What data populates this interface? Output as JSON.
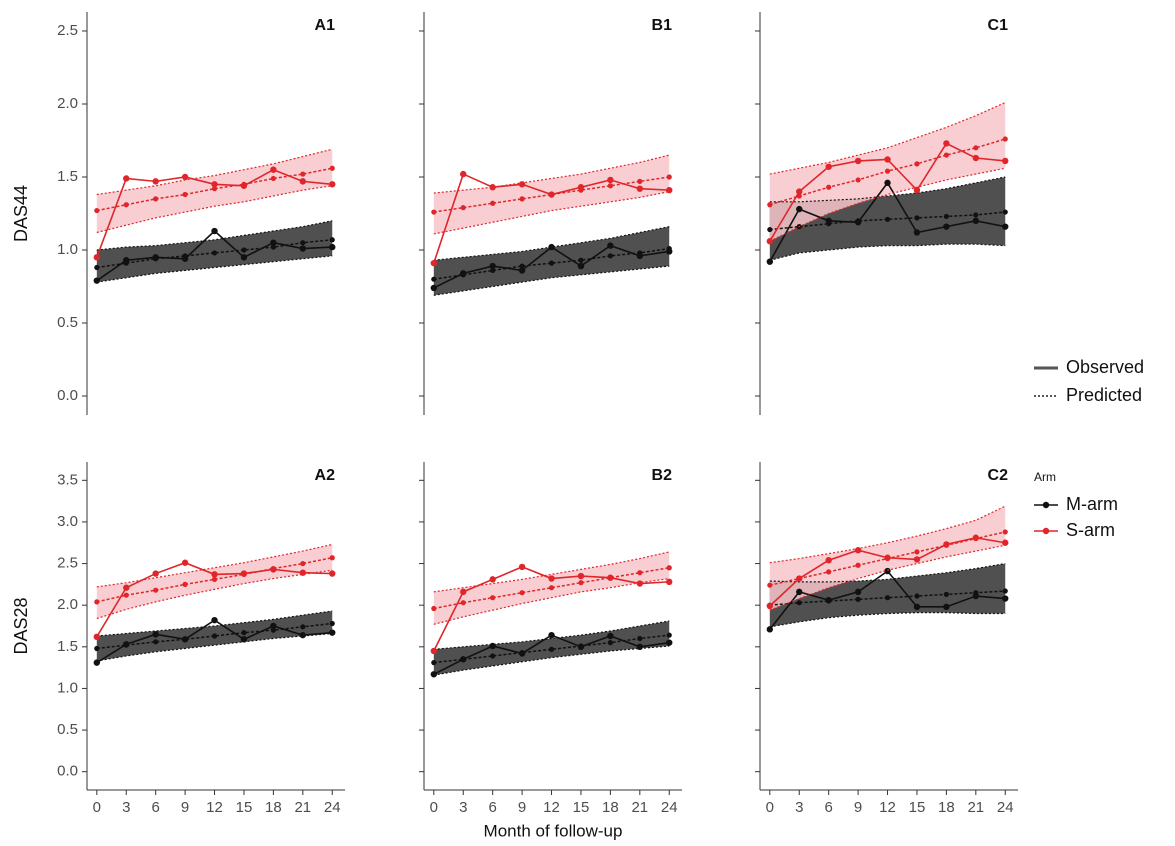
{
  "chart_data": [
    {
      "type": "line",
      "title": "A1",
      "y_label": "DAS44",
      "x": [
        0,
        3,
        6,
        9,
        12,
        15,
        18,
        21,
        24
      ],
      "xlim": [
        -1,
        25.3
      ],
      "ylim": [
        -0.13,
        2.63
      ],
      "yticks": [
        {
          "value": 0,
          "label": "0.0"
        },
        {
          "value": 0.5,
          "label": "0.5"
        },
        {
          "value": 1,
          "label": "1.0"
        },
        {
          "value": 1.5,
          "label": "1.5"
        },
        {
          "value": 2,
          "label": "2.0"
        },
        {
          "value": 2.5,
          "label": "2.5"
        }
      ],
      "series": [
        {
          "observed": [
            0.79,
            0.93,
            0.95,
            0.94,
            1.13,
            0.95,
            1.05,
            1.01,
            1.02
          ],
          "predicted": [
            0.88,
            0.91,
            0.94,
            0.96,
            0.98,
            1.0,
            1.02,
            1.05,
            1.07
          ],
          "lower": [
            0.78,
            0.81,
            0.84,
            0.86,
            0.88,
            0.9,
            0.92,
            0.94,
            0.96
          ],
          "upper": [
            1.0,
            1.02,
            1.03,
            1.05,
            1.07,
            1.1,
            1.13,
            1.16,
            1.2
          ]
        },
        {
          "observed": [
            0.95,
            1.49,
            1.47,
            1.5,
            1.45,
            1.44,
            1.55,
            1.47,
            1.45
          ],
          "predicted": [
            1.27,
            1.31,
            1.35,
            1.38,
            1.42,
            1.45,
            1.49,
            1.52,
            1.56
          ],
          "lower": [
            1.12,
            1.17,
            1.22,
            1.26,
            1.3,
            1.33,
            1.37,
            1.41,
            1.44
          ],
          "upper": [
            1.38,
            1.41,
            1.44,
            1.48,
            1.51,
            1.55,
            1.59,
            1.64,
            1.69
          ]
        }
      ]
    },
    {
      "type": "line",
      "title": "B1",
      "x": [
        0,
        3,
        6,
        9,
        12,
        15,
        18,
        21,
        24
      ],
      "xlim": [
        -1,
        25.3
      ],
      "ylim": [
        -0.13,
        2.63
      ],
      "yticks": [
        0,
        0.5,
        1,
        1.5,
        2,
        2.5
      ],
      "series": [
        {
          "observed": [
            0.74,
            0.84,
            0.89,
            0.86,
            1.02,
            0.89,
            1.03,
            0.96,
            0.99
          ],
          "predicted": [
            0.8,
            0.83,
            0.86,
            0.89,
            0.91,
            0.93,
            0.96,
            0.98,
            1.01
          ],
          "lower": [
            0.69,
            0.72,
            0.75,
            0.78,
            0.81,
            0.83,
            0.85,
            0.87,
            0.89
          ],
          "upper": [
            0.93,
            0.95,
            0.97,
            0.99,
            1.02,
            1.05,
            1.08,
            1.12,
            1.16
          ]
        },
        {
          "observed": [
            0.91,
            1.52,
            1.43,
            1.45,
            1.38,
            1.43,
            1.48,
            1.42,
            1.41
          ],
          "predicted": [
            1.26,
            1.29,
            1.32,
            1.35,
            1.38,
            1.41,
            1.44,
            1.47,
            1.5
          ],
          "lower": [
            1.11,
            1.15,
            1.19,
            1.23,
            1.27,
            1.3,
            1.33,
            1.36,
            1.4
          ],
          "upper": [
            1.39,
            1.41,
            1.43,
            1.46,
            1.49,
            1.52,
            1.56,
            1.6,
            1.65
          ]
        }
      ]
    },
    {
      "type": "line",
      "title": "C1",
      "x": [
        0,
        3,
        6,
        9,
        12,
        15,
        18,
        21,
        24
      ],
      "xlim": [
        -1,
        25.3
      ],
      "ylim": [
        -0.13,
        2.63
      ],
      "yticks": [
        0,
        0.5,
        1,
        1.5,
        2,
        2.5
      ],
      "series": [
        {
          "observed": [
            0.92,
            1.28,
            1.2,
            1.19,
            1.46,
            1.12,
            1.16,
            1.2,
            1.16
          ],
          "predicted": [
            1.14,
            1.16,
            1.18,
            1.2,
            1.21,
            1.22,
            1.23,
            1.24,
            1.26
          ],
          "lower": [
            0.93,
            0.98,
            1.0,
            1.02,
            1.03,
            1.03,
            1.04,
            1.04,
            1.03
          ],
          "upper": [
            1.33,
            1.33,
            1.34,
            1.35,
            1.37,
            1.39,
            1.42,
            1.46,
            1.5
          ]
        },
        {
          "observed": [
            1.06,
            1.4,
            1.57,
            1.61,
            1.62,
            1.41,
            1.73,
            1.63,
            1.61
          ],
          "predicted": [
            1.31,
            1.37,
            1.43,
            1.48,
            1.54,
            1.59,
            1.65,
            1.7,
            1.76
          ],
          "lower": [
            1.06,
            1.16,
            1.25,
            1.32,
            1.38,
            1.43,
            1.48,
            1.52,
            1.56
          ],
          "upper": [
            1.52,
            1.56,
            1.6,
            1.65,
            1.7,
            1.77,
            1.84,
            1.92,
            2.01
          ]
        }
      ]
    },
    {
      "type": "line",
      "title": "A2",
      "y_label": "DAS28",
      "x": [
        0,
        3,
        6,
        9,
        12,
        15,
        18,
        21,
        24
      ],
      "xlim": [
        -1,
        25.3
      ],
      "ylim": [
        -0.22,
        3.72
      ],
      "xticks": [
        0,
        3,
        6,
        9,
        12,
        15,
        18,
        21,
        24
      ],
      "yticks": [
        {
          "value": 0,
          "label": "0.0"
        },
        {
          "value": 0.5,
          "label": "0.5"
        },
        {
          "value": 1,
          "label": "1.0"
        },
        {
          "value": 1.5,
          "label": "1.5"
        },
        {
          "value": 2,
          "label": "2.0"
        },
        {
          "value": 2.5,
          "label": "2.5"
        },
        {
          "value": 3,
          "label": "3.0"
        },
        {
          "value": 3.5,
          "label": "3.5"
        }
      ],
      "series": [
        {
          "observed": [
            1.31,
            1.53,
            1.65,
            1.59,
            1.82,
            1.59,
            1.75,
            1.64,
            1.67
          ],
          "predicted": [
            1.48,
            1.52,
            1.56,
            1.59,
            1.63,
            1.67,
            1.7,
            1.74,
            1.78
          ],
          "lower": [
            1.33,
            1.39,
            1.44,
            1.48,
            1.52,
            1.56,
            1.6,
            1.63,
            1.66
          ],
          "upper": [
            1.63,
            1.66,
            1.69,
            1.72,
            1.75,
            1.79,
            1.83,
            1.88,
            1.93
          ]
        },
        {
          "observed": [
            1.62,
            2.21,
            2.38,
            2.51,
            2.37,
            2.38,
            2.43,
            2.39,
            2.38
          ],
          "predicted": [
            2.04,
            2.12,
            2.18,
            2.25,
            2.31,
            2.37,
            2.44,
            2.5,
            2.57
          ],
          "lower": [
            1.84,
            1.95,
            2.04,
            2.12,
            2.19,
            2.26,
            2.32,
            2.37,
            2.42
          ],
          "upper": [
            2.22,
            2.27,
            2.33,
            2.39,
            2.45,
            2.51,
            2.58,
            2.65,
            2.73
          ]
        }
      ]
    },
    {
      "type": "line",
      "title": "B2",
      "x_label": "Month of follow-up",
      "x": [
        0,
        3,
        6,
        9,
        12,
        15,
        18,
        21,
        24
      ],
      "xlim": [
        -1,
        25.3
      ],
      "ylim": [
        -0.22,
        3.72
      ],
      "xticks": [
        0,
        3,
        6,
        9,
        12,
        15,
        18,
        21,
        24
      ],
      "yticks": [
        0,
        0.5,
        1,
        1.5,
        2,
        2.5,
        3,
        3.5
      ],
      "series": [
        {
          "observed": [
            1.17,
            1.35,
            1.51,
            1.42,
            1.64,
            1.5,
            1.63,
            1.5,
            1.55
          ],
          "predicted": [
            1.31,
            1.35,
            1.39,
            1.43,
            1.47,
            1.51,
            1.55,
            1.6,
            1.64
          ],
          "lower": [
            1.16,
            1.22,
            1.27,
            1.32,
            1.37,
            1.41,
            1.45,
            1.48,
            1.51
          ],
          "upper": [
            1.47,
            1.5,
            1.53,
            1.56,
            1.6,
            1.64,
            1.69,
            1.75,
            1.81
          ]
        },
        {
          "observed": [
            1.45,
            2.16,
            2.31,
            2.46,
            2.32,
            2.35,
            2.33,
            2.26,
            2.28
          ],
          "predicted": [
            1.96,
            2.03,
            2.09,
            2.15,
            2.21,
            2.27,
            2.33,
            2.39,
            2.45
          ],
          "lower": [
            1.77,
            1.86,
            1.94,
            2.02,
            2.09,
            2.16,
            2.21,
            2.27,
            2.32
          ],
          "upper": [
            2.16,
            2.21,
            2.26,
            2.31,
            2.37,
            2.43,
            2.49,
            2.56,
            2.64
          ]
        }
      ]
    },
    {
      "type": "line",
      "title": "C2",
      "x": [
        0,
        3,
        6,
        9,
        12,
        15,
        18,
        21,
        24
      ],
      "xlim": [
        -1,
        25.3
      ],
      "ylim": [
        -0.22,
        3.72
      ],
      "xticks": [
        0,
        3,
        6,
        9,
        12,
        15,
        18,
        21,
        24
      ],
      "yticks": [
        0,
        0.5,
        1,
        1.5,
        2,
        2.5,
        3,
        3.5
      ],
      "series": [
        {
          "observed": [
            1.71,
            2.16,
            2.06,
            2.16,
            2.41,
            1.98,
            1.98,
            2.11,
            2.08
          ],
          "predicted": [
            2.0,
            2.03,
            2.05,
            2.07,
            2.09,
            2.11,
            2.13,
            2.15,
            2.17
          ],
          "lower": [
            1.74,
            1.8,
            1.85,
            1.88,
            1.9,
            1.91,
            1.91,
            1.9,
            1.9
          ],
          "upper": [
            2.29,
            2.28,
            2.28,
            2.29,
            2.31,
            2.35,
            2.39,
            2.44,
            2.5
          ]
        },
        {
          "observed": [
            1.99,
            2.32,
            2.54,
            2.66,
            2.57,
            2.55,
            2.73,
            2.81,
            2.75
          ],
          "predicted": [
            2.24,
            2.32,
            2.4,
            2.48,
            2.56,
            2.64,
            2.72,
            2.8,
            2.88
          ],
          "lower": [
            1.94,
            2.08,
            2.21,
            2.32,
            2.42,
            2.5,
            2.58,
            2.65,
            2.72
          ],
          "upper": [
            2.51,
            2.56,
            2.62,
            2.68,
            2.75,
            2.83,
            2.92,
            3.02,
            3.19
          ]
        }
      ]
    }
  ],
  "legend": {
    "linetypes": [
      "Observed",
      "Predicted"
    ],
    "title": "Arm",
    "arms": [
      {
        "name": "M-arm",
        "color": "#111111",
        "band_color": "#505050"
      },
      {
        "name": "S-arm",
        "color": "#e0262a",
        "band_color": "#f7c5cb"
      }
    ]
  }
}
